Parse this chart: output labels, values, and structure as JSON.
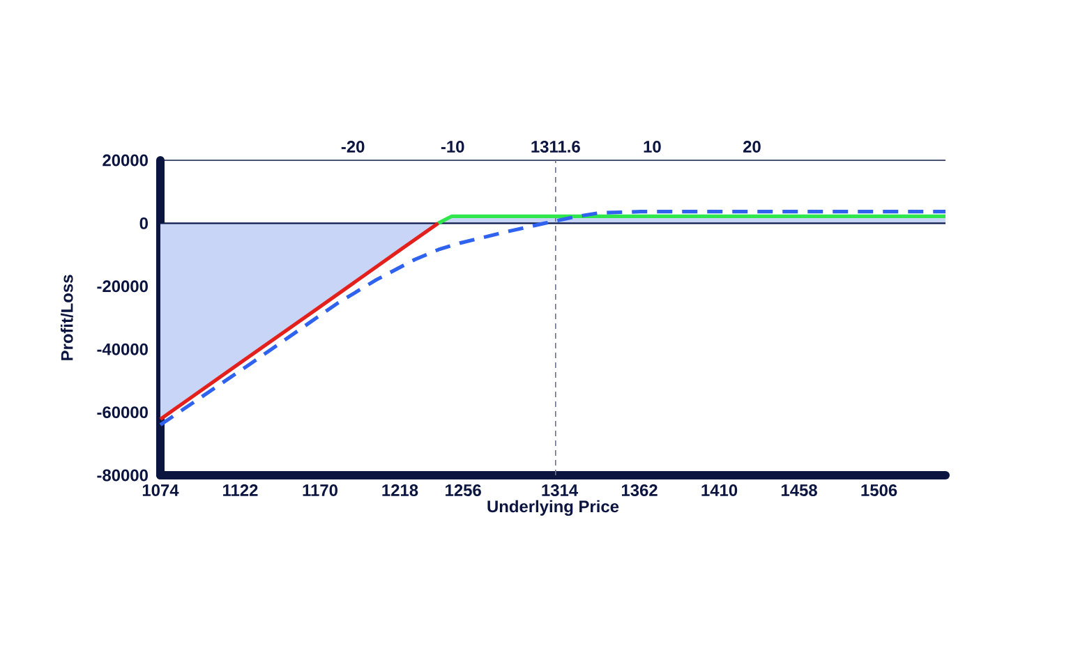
{
  "chart_data": {
    "type": "line",
    "xlabel": "Underlying Price",
    "ylabel": "Profit/Loss",
    "xlim": [
      1074,
      1546
    ],
    "xticks": [
      1074,
      1122,
      1170,
      1218,
      1256,
      1314,
      1362,
      1410,
      1458,
      1506
    ],
    "x2lim": [
      -39.3,
      39.4
    ],
    "x2ticks": [
      -20,
      -10,
      10,
      20
    ],
    "ylim": [
      -80000,
      20000
    ],
    "yticks": [
      -80000,
      -60000,
      -40000,
      -20000,
      0,
      20000
    ],
    "series": [
      {
        "type": "area",
        "color": "#c9d5f7",
        "x": [
          1074,
          1241,
          1249,
          1546
        ],
        "values": [
          -62200,
          0,
          2200,
          2200
        ]
      },
      {
        "color": "#2fe64c",
        "x": [
          1241,
          1249,
          1546
        ],
        "values": [
          0,
          2200,
          2200
        ]
      },
      {
        "color": "#e3201b",
        "x": [
          1074,
          1122,
          1170,
          1218,
          1241
        ],
        "values": [
          -62200,
          -44300,
          -26500,
          -8500,
          0
        ]
      },
      {
        "color": "#2f62ee",
        "line_style": "dashed",
        "x": [
          1074,
          1129,
          1181,
          1204,
          1227,
          1242,
          1254,
          1282,
          1305,
          1324,
          1338,
          1363,
          1546
        ],
        "values": [
          -64000,
          -44300,
          -25200,
          -17900,
          -11500,
          -8200,
          -6300,
          -2700,
          0,
          2100,
          3300,
          3700,
          3700
        ]
      }
    ],
    "ref_lines": [
      {
        "axis": "y",
        "value": 0,
        "color": "#0b1a4a"
      },
      {
        "axis": "x",
        "value": 1311.6,
        "label": "1311.6",
        "color": "#6b7289",
        "line_style": "dashed"
      }
    ]
  }
}
